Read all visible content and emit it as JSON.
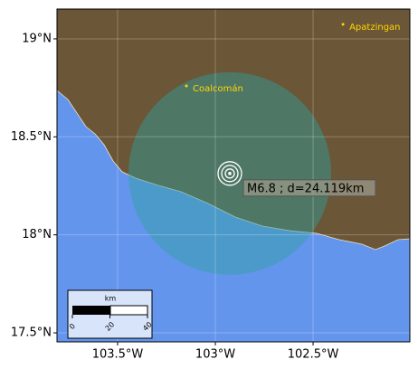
{
  "map": {
    "xlim": [
      -103.81,
      -102.005
    ],
    "ylim": [
      17.454,
      19.152
    ],
    "xticks": [
      {
        "value": -103.5,
        "label": "103.5°W"
      },
      {
        "value": -103,
        "label": "103°W"
      },
      {
        "value": -102.5,
        "label": "102.5°W"
      }
    ],
    "yticks": [
      {
        "value": 17.5,
        "label": "17.5°N"
      },
      {
        "value": 18,
        "label": "18°N"
      },
      {
        "value": 18.5,
        "label": "18.5°N"
      },
      {
        "value": 19,
        "label": "19°N"
      }
    ],
    "grid": true,
    "cities": [
      {
        "name": "Coalcomán",
        "lon": -103.148,
        "lat": 18.76
      },
      {
        "name": "Apatzingan",
        "lon": -102.347,
        "lat": 19.074
      }
    ],
    "event": {
      "lon": -102.926,
      "lat": 18.313,
      "label": "M6.8 ; d=24.119km"
    },
    "scale_bar": {
      "unit": "km",
      "ticks": [
        0,
        20,
        40
      ]
    }
  }
}
